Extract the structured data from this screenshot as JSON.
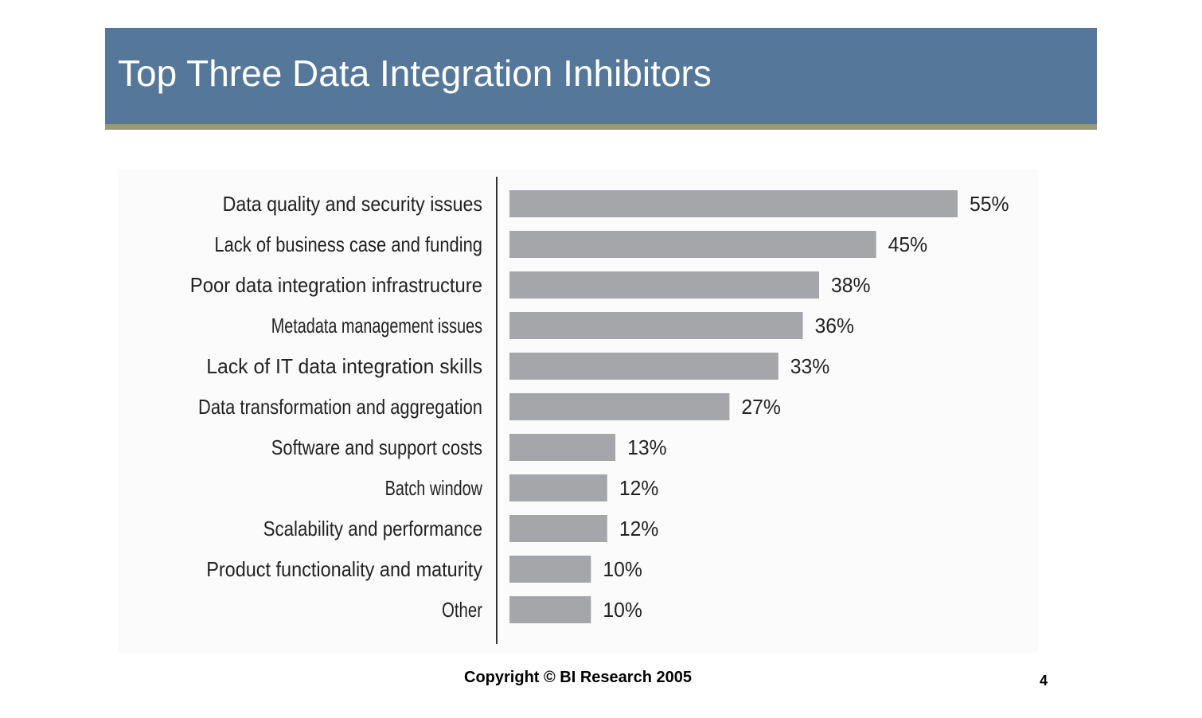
{
  "slide": {
    "title": "Top Three Data Integration Inhibitors",
    "copyright": "Copyright © BI Research 2005",
    "page_number": "4"
  },
  "colors": {
    "title_bar": "#557799",
    "title_underline": "#9b9878",
    "bar": "#a5a6aa",
    "text": "#222222",
    "axis": "#333333"
  },
  "chart_data": {
    "type": "bar",
    "orientation": "horizontal",
    "categories": [
      "Data quality and security issues",
      "Lack of business case and funding",
      "Poor data integration infrastructure",
      "Metadata management issues",
      "Lack of IT data integration skills",
      "Data transformation and aggregation",
      "Software and support costs",
      "Batch window",
      "Scalability and performance",
      "Product functionality and maturity",
      "Other"
    ],
    "values": [
      55,
      45,
      38,
      36,
      33,
      27,
      13,
      12,
      12,
      10,
      10
    ],
    "value_labels": [
      "55%",
      "45%",
      "38%",
      "36%",
      "33%",
      "27%",
      "13%",
      "12%",
      "12%",
      "10%",
      "10%"
    ],
    "unit": "%",
    "xlim": [
      0,
      55
    ],
    "grid": false,
    "legend": "none"
  }
}
